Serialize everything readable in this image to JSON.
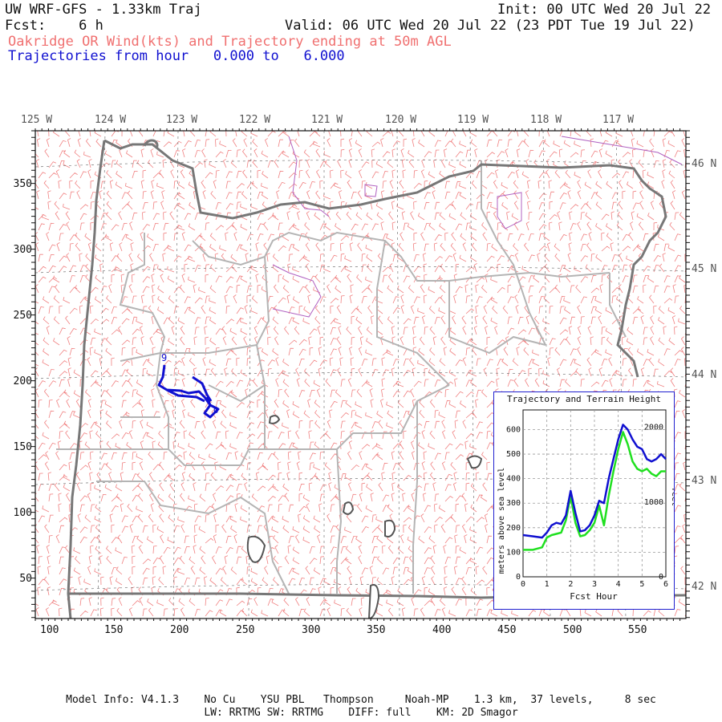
{
  "header": {
    "title_left": "UW WRF-GFS - 1.33km Traj",
    "init": "Init: 00 UTC Wed 20 Jul 22",
    "fcst": "Fcst:    6 h",
    "valid": "Valid: 06 UTC Wed 20 Jul 22 (23 PDT Tue 19 Jul 22)",
    "subtitle": "Oakridge OR Wind(kts) and Trajectory ending at 50m AGL",
    "traj_line": "Trajectories from hour   0.000 to   6.000"
  },
  "map": {
    "lon_labels": [
      "125 W",
      "124 W",
      "123 W",
      "122 W",
      "121 W",
      "120 W",
      "119 W",
      "118 W",
      "117 W"
    ],
    "lat_labels": [
      "46 N",
      "45 N",
      "44 N",
      "43 N",
      "42 N"
    ],
    "y_ticks": [
      "350",
      "300",
      "250",
      "200",
      "150",
      "100",
      "50"
    ],
    "x_ticks": [
      "100",
      "150",
      "200",
      "250",
      "300",
      "350",
      "400",
      "450",
      "500",
      "550"
    ],
    "traj_marker": "9",
    "colors": {
      "barbs": "#f08080",
      "state": "#777777",
      "county": "#b0b0b0",
      "traj": "#1010d0",
      "water": "#a050c0"
    }
  },
  "inset": {
    "title": "Trajectory and Terrain Height",
    "ylabel": "meters above sea level",
    "ylabel_right": "feet",
    "xlabel": "Fcst Hour",
    "end_marker": "0"
  },
  "chart_data": {
    "type": "line",
    "title": "Trajectory and Terrain Height",
    "xlabel": "Fcst Hour",
    "ylabel": "meters above sea level",
    "ylabel_right": "feet",
    "xlim": [
      0,
      6
    ],
    "ylim": [
      0,
      680
    ],
    "x_ticks": [
      "0",
      "1",
      "2",
      "3",
      "4",
      "5",
      "6"
    ],
    "y_ticks": [
      "0",
      "100",
      "200",
      "300",
      "400",
      "500",
      "600"
    ],
    "y2_ticks": [
      "0",
      "1000",
      "2000"
    ],
    "series": [
      {
        "color": "#1010d0",
        "x": [
          0,
          0.4,
          0.8,
          1.0,
          1.2,
          1.4,
          1.6,
          1.8,
          2.0,
          2.2,
          2.4,
          2.6,
          2.8,
          3.0,
          3.2,
          3.4,
          3.6,
          3.8,
          4.0,
          4.2,
          4.4,
          4.6,
          4.8,
          5.0,
          5.2,
          5.4,
          5.6,
          5.8,
          6.0
        ],
        "y": [
          170,
          165,
          160,
          180,
          210,
          220,
          215,
          250,
          350,
          260,
          185,
          190,
          210,
          250,
          310,
          300,
          400,
          480,
          560,
          620,
          600,
          560,
          530,
          520,
          480,
          470,
          480,
          500,
          480
        ]
      },
      {
        "color": "#20e020",
        "x": [
          0,
          0.4,
          0.8,
          1.0,
          1.2,
          1.4,
          1.6,
          1.8,
          2.0,
          2.2,
          2.4,
          2.6,
          2.8,
          3.0,
          3.2,
          3.4,
          3.6,
          3.8,
          4.0,
          4.2,
          4.4,
          4.6,
          4.8,
          5.0,
          5.2,
          5.4,
          5.6,
          5.8,
          6.0
        ],
        "y": [
          110,
          110,
          120,
          160,
          170,
          175,
          180,
          230,
          330,
          220,
          165,
          170,
          190,
          220,
          290,
          210,
          330,
          430,
          520,
          590,
          540,
          470,
          440,
          430,
          440,
          420,
          410,
          430,
          430
        ]
      }
    ]
  },
  "footer": {
    "line1": "Model Info: V4.1.3    No Cu    YSU PBL   Thompson     Noah-MP    1.3 km,  37 levels,     8 sec",
    "line2": "LW: RRTMG SW: RRTMG    DIFF: full    KM: 2D Smagor"
  }
}
